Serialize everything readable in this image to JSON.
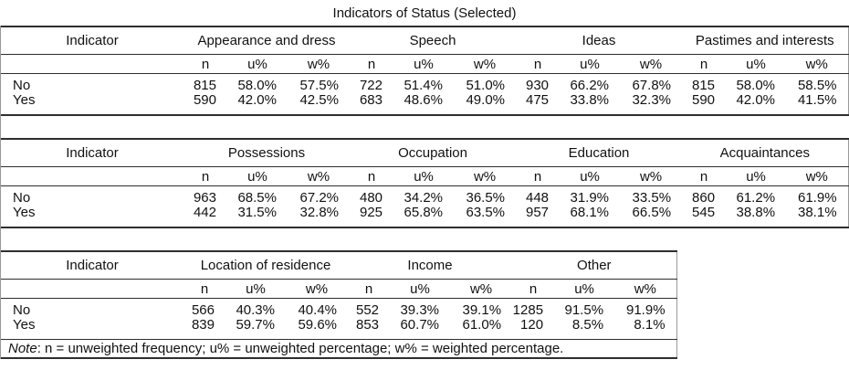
{
  "title": "Indicators of Status (Selected)",
  "indicator_header": "Indicator",
  "stat_headers": [
    "n",
    "u%",
    "w%"
  ],
  "row_labels": [
    "No",
    "Yes"
  ],
  "tables": [
    {
      "groups": [
        {
          "name": "Appearance and dress",
          "rows": [
            [
              "815",
              "58.0%",
              "57.5%"
            ],
            [
              "590",
              "42.0%",
              "42.5%"
            ]
          ]
        },
        {
          "name": "Speech",
          "rows": [
            [
              "722",
              "51.4%",
              "51.0%"
            ],
            [
              "683",
              "48.6%",
              "49.0%"
            ]
          ]
        },
        {
          "name": "Ideas",
          "rows": [
            [
              "930",
              "66.2%",
              "67.8%"
            ],
            [
              "475",
              "33.8%",
              "32.3%"
            ]
          ]
        },
        {
          "name": "Pastimes and interests",
          "rows": [
            [
              "815",
              "58.0%",
              "58.5%"
            ],
            [
              "590",
              "42.0%",
              "41.5%"
            ]
          ]
        }
      ]
    },
    {
      "groups": [
        {
          "name": "Possessions",
          "rows": [
            [
              "963",
              "68.5%",
              "67.2%"
            ],
            [
              "442",
              "31.5%",
              "32.8%"
            ]
          ]
        },
        {
          "name": "Occupation",
          "rows": [
            [
              "480",
              "34.2%",
              "36.5%"
            ],
            [
              "925",
              "65.8%",
              "63.5%"
            ]
          ]
        },
        {
          "name": "Education",
          "rows": [
            [
              "448",
              "31.9%",
              "33.5%"
            ],
            [
              "957",
              "68.1%",
              "66.5%"
            ]
          ]
        },
        {
          "name": "Acquaintances",
          "rows": [
            [
              "860",
              "61.2%",
              "61.9%"
            ],
            [
              "545",
              "38.8%",
              "38.1%"
            ]
          ]
        }
      ]
    },
    {
      "has_note": true,
      "groups": [
        {
          "name": "Location of residence",
          "rows": [
            [
              "566",
              "40.3%",
              "40.4%"
            ],
            [
              "839",
              "59.7%",
              "59.6%"
            ]
          ]
        },
        {
          "name": "Income",
          "rows": [
            [
              "552",
              "39.3%",
              "39.1%"
            ],
            [
              "853",
              "60.7%",
              "61.0%"
            ]
          ]
        },
        {
          "name": "Other",
          "rows": [
            [
              "1285",
              "91.5%",
              "91.9%"
            ],
            [
              "120",
              "8.5%",
              "8.1%"
            ]
          ]
        }
      ]
    }
  ],
  "note": {
    "label": "Note",
    "text": ": n = unweighted frequency; u% = unweighted percentage; w% = weighted percentage."
  },
  "colors": {
    "background": "#ffffff",
    "text": "#111111",
    "rules": "#2e2e2e",
    "table_edge": "#9a9a9a"
  }
}
